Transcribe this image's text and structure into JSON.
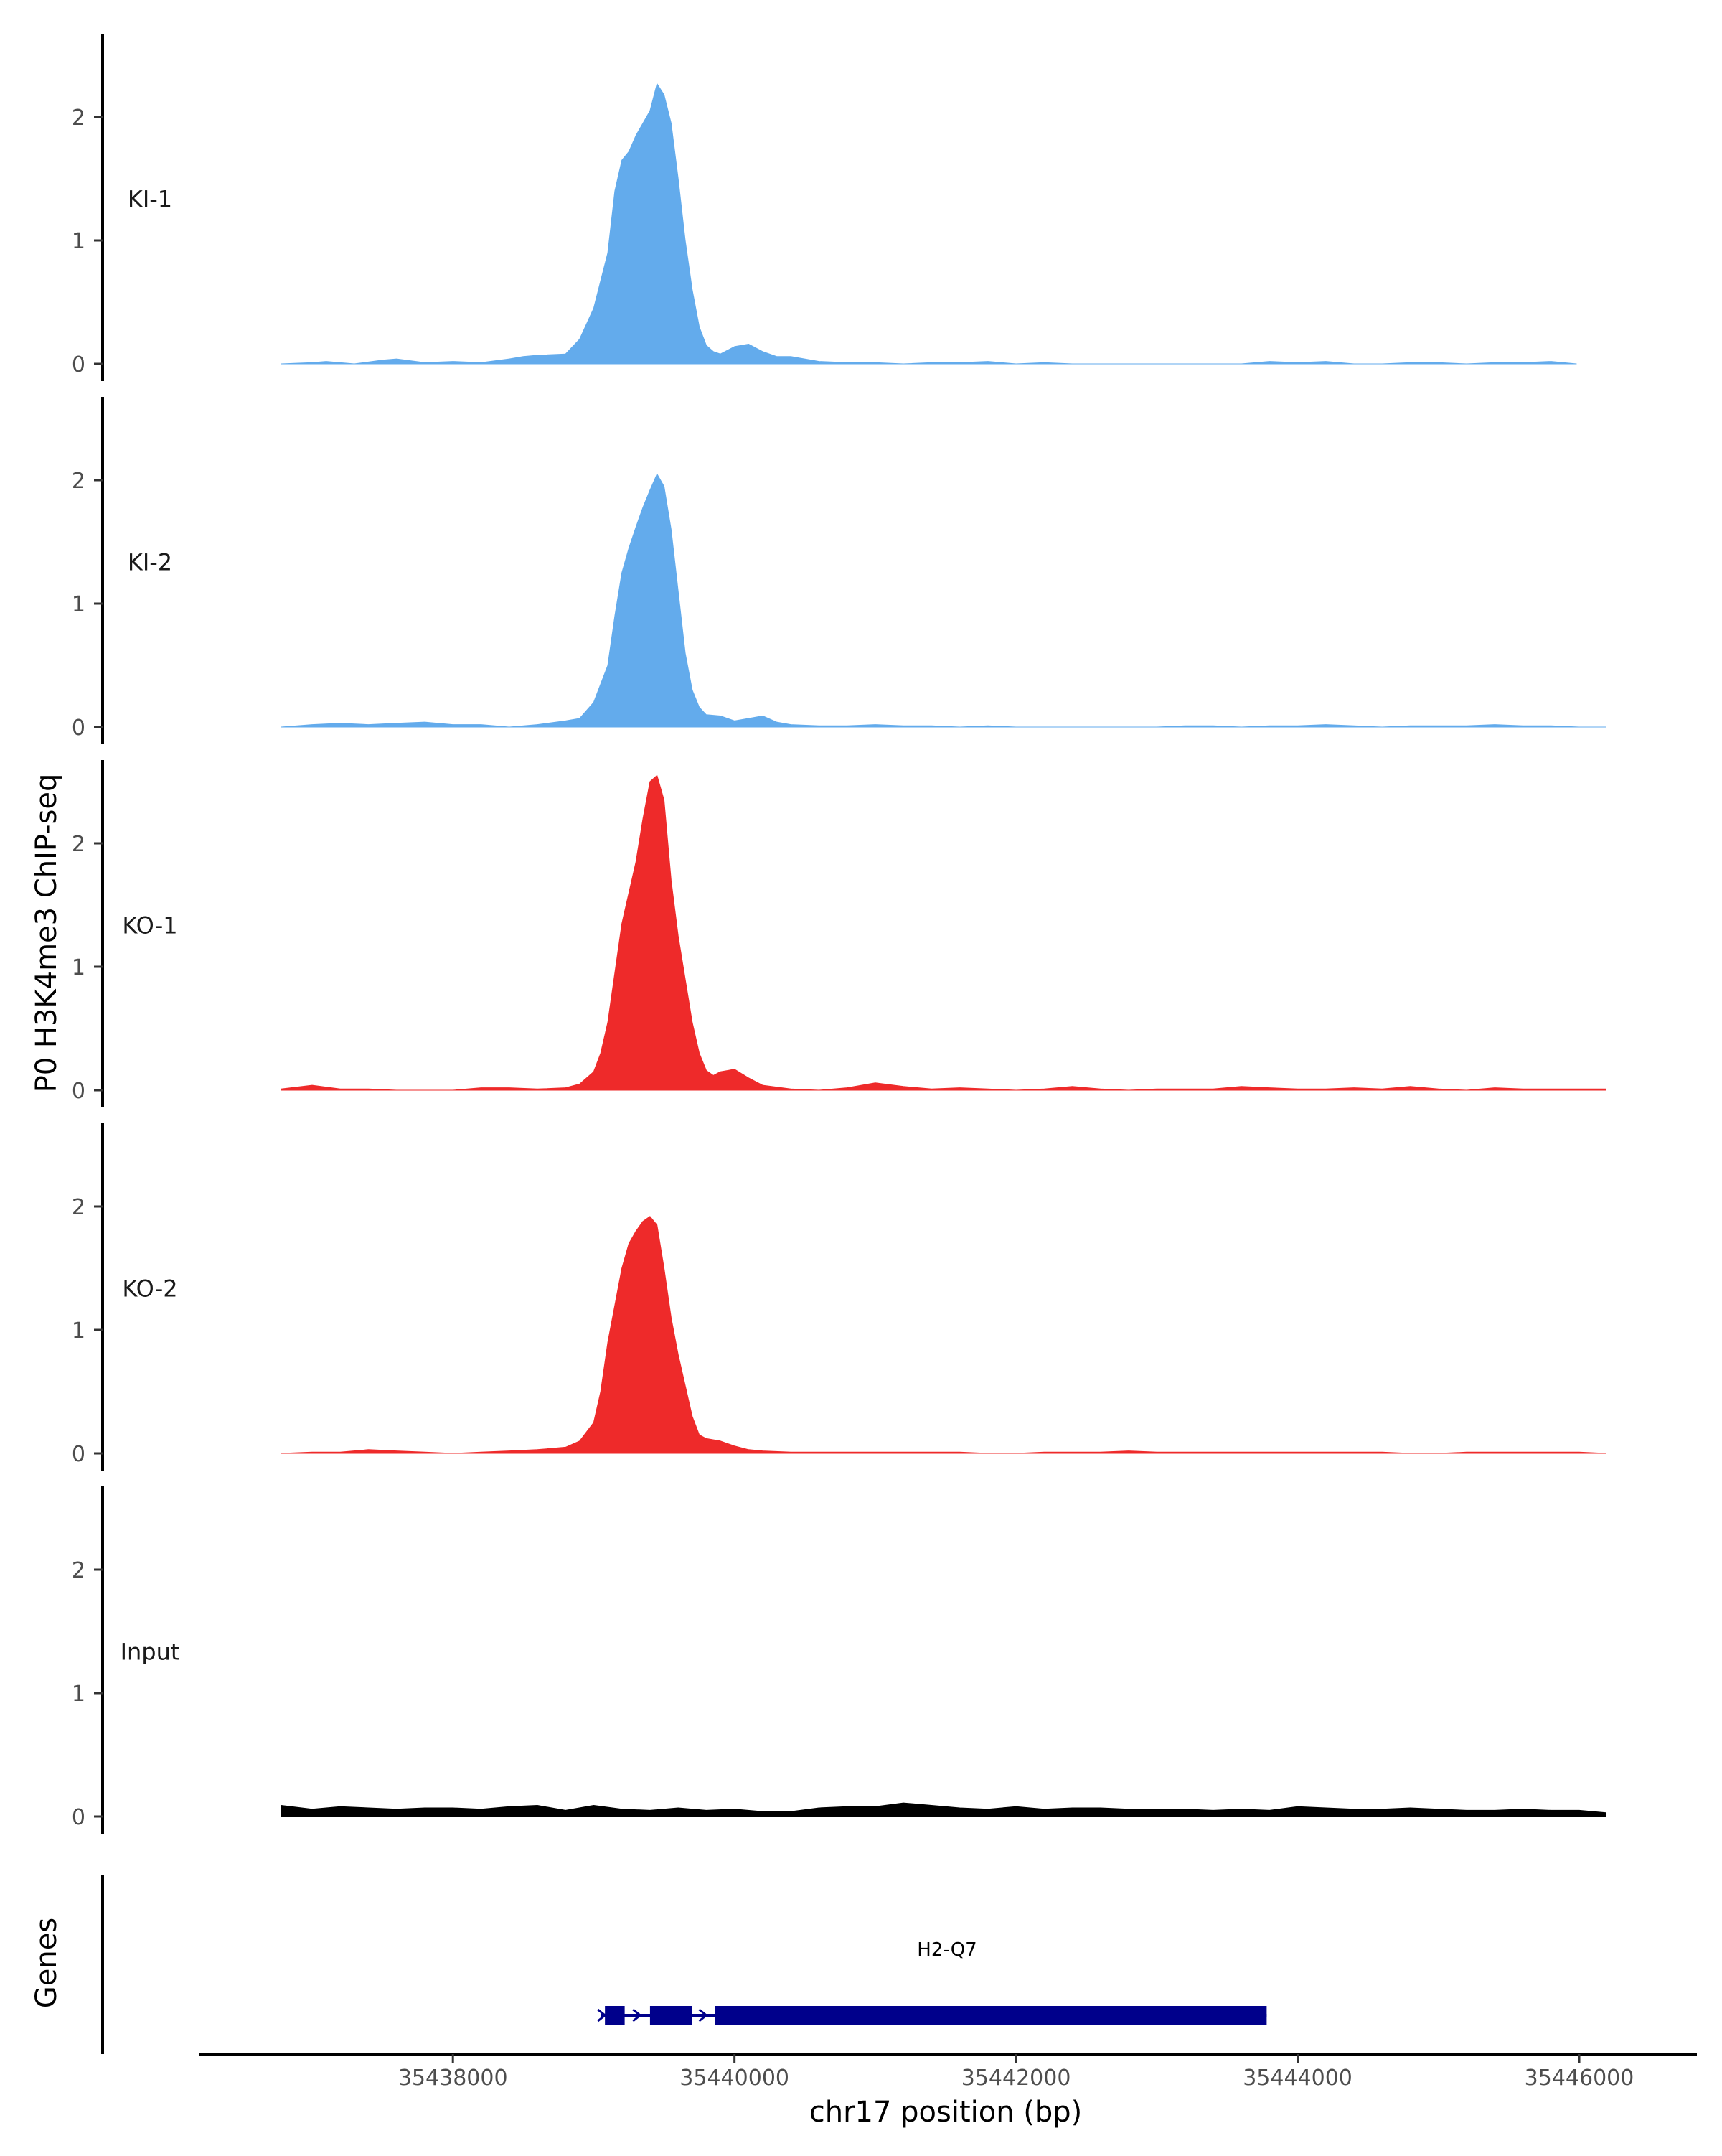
{
  "chart_data": {
    "type": "area",
    "ylabel": "P0 H3K4me3 ChIP-seq",
    "xlabel": "chr17 position (bp)",
    "xlim": [
      35436200,
      35446800
    ],
    "ylim": [
      0,
      2.65
    ],
    "yticks": [
      0,
      1,
      2
    ],
    "xticks": [
      35438000,
      35440000,
      35442000,
      35444000,
      35446000
    ],
    "xtick_labels": [
      "35438000",
      "35440000",
      "35442000",
      "35444000",
      "35446000"
    ],
    "grid": false,
    "legend": "none",
    "colors": {
      "KI": "#63ABEC",
      "KO": "#EE2A2A",
      "Input": "#000000",
      "gene": "#00008B"
    },
    "tracks": [
      {
        "name": "KI-1",
        "color": "#63ABEC",
        "x": [
          35436780,
          35437000,
          35437100,
          35437300,
          35437500,
          35437600,
          35437800,
          35438000,
          35438200,
          35438400,
          35438500,
          35438600,
          35438800,
          35438900,
          35439000,
          35439100,
          35439150,
          35439200,
          35439250,
          35439300,
          35439350,
          35439400,
          35439450,
          35439500,
          35439550,
          35439600,
          35439650,
          35439700,
          35439750,
          35439800,
          35439850,
          35439900,
          35440000,
          35440100,
          35440200,
          35440300,
          35440400,
          35440600,
          35440800,
          35441000,
          35441200,
          35441400,
          35441600,
          35441800,
          35442000,
          35442200,
          35442400,
          35442600,
          35442800,
          35443000,
          35443200,
          35443400,
          35443600,
          35443800,
          35444000,
          35444200,
          35444400,
          35444600,
          35444800,
          35445000,
          35445200,
          35445400,
          35445600,
          35445800,
          35445980
        ],
        "y": [
          0.0,
          0.01,
          0.02,
          0.0,
          0.03,
          0.04,
          0.01,
          0.02,
          0.01,
          0.04,
          0.06,
          0.07,
          0.08,
          0.2,
          0.45,
          0.9,
          1.4,
          1.65,
          1.72,
          1.85,
          1.95,
          2.05,
          2.27,
          2.18,
          1.95,
          1.5,
          1.0,
          0.6,
          0.3,
          0.15,
          0.1,
          0.08,
          0.14,
          0.16,
          0.1,
          0.06,
          0.06,
          0.02,
          0.01,
          0.01,
          0.0,
          0.01,
          0.01,
          0.02,
          0.0,
          0.01,
          0.0,
          0.0,
          0.0,
          0.0,
          0.0,
          0.0,
          0.0,
          0.02,
          0.01,
          0.02,
          0.0,
          0.0,
          0.01,
          0.01,
          0.0,
          0.01,
          0.01,
          0.02,
          0.0
        ]
      },
      {
        "name": "KI-2",
        "color": "#63ABEC",
        "x": [
          35436780,
          35437000,
          35437200,
          35437400,
          35437600,
          35437800,
          35438000,
          35438200,
          35438400,
          35438600,
          35438800,
          35438900,
          35439000,
          35439100,
          35439150,
          35439200,
          35439250,
          35439300,
          35439350,
          35439400,
          35439450,
          35439500,
          35439550,
          35439600,
          35439650,
          35439700,
          35439750,
          35439800,
          35439900,
          35440000,
          35440100,
          35440200,
          35440300,
          35440400,
          35440600,
          35440800,
          35441000,
          35441200,
          35441400,
          35441600,
          35441800,
          35442000,
          35442200,
          35442400,
          35442600,
          35442800,
          35443000,
          35443200,
          35443400,
          35443600,
          35443800,
          35444000,
          35444200,
          35444400,
          35444600,
          35444800,
          35445000,
          35445200,
          35445400,
          35445600,
          35445800,
          35446000,
          35446190
        ],
        "y": [
          0.0,
          0.02,
          0.03,
          0.02,
          0.03,
          0.04,
          0.02,
          0.02,
          0.0,
          0.02,
          0.05,
          0.07,
          0.2,
          0.5,
          0.9,
          1.25,
          1.45,
          1.62,
          1.78,
          1.92,
          2.05,
          1.95,
          1.6,
          1.1,
          0.6,
          0.3,
          0.16,
          0.1,
          0.09,
          0.05,
          0.07,
          0.09,
          0.04,
          0.02,
          0.01,
          0.01,
          0.02,
          0.01,
          0.01,
          0.0,
          0.01,
          0.0,
          0.0,
          0.0,
          0.0,
          0.0,
          0.0,
          0.01,
          0.01,
          0.0,
          0.01,
          0.01,
          0.02,
          0.01,
          0.0,
          0.01,
          0.01,
          0.01,
          0.02,
          0.01,
          0.01,
          0.0,
          0.0
        ]
      },
      {
        "name": "KO-1",
        "color": "#EE2A2A",
        "x": [
          35436780,
          35437000,
          35437200,
          35437400,
          35437600,
          35437800,
          35438000,
          35438200,
          35438400,
          35438600,
          35438800,
          35438900,
          35439000,
          35439050,
          35439100,
          35439150,
          35439200,
          35439250,
          35439300,
          35439350,
          35439400,
          35439450,
          35439500,
          35439550,
          35439600,
          35439650,
          35439700,
          35439750,
          35439800,
          35439850,
          35439900,
          35440000,
          35440100,
          35440200,
          35440400,
          35440600,
          35440800,
          35441000,
          35441200,
          35441400,
          35441600,
          35441800,
          35442000,
          35442200,
          35442400,
          35442600,
          35442800,
          35443000,
          35443200,
          35443400,
          35443600,
          35443800,
          35444000,
          35444200,
          35444400,
          35444600,
          35444800,
          35445000,
          35445200,
          35445400,
          35445600,
          35445800,
          35446000,
          35446190
        ],
        "y": [
          0.01,
          0.04,
          0.01,
          0.01,
          0.0,
          0.0,
          0.0,
          0.02,
          0.02,
          0.01,
          0.02,
          0.05,
          0.15,
          0.3,
          0.55,
          0.95,
          1.35,
          1.6,
          1.85,
          2.2,
          2.5,
          2.55,
          2.35,
          1.7,
          1.25,
          0.9,
          0.55,
          0.3,
          0.16,
          0.12,
          0.15,
          0.17,
          0.1,
          0.04,
          0.01,
          0.0,
          0.02,
          0.06,
          0.03,
          0.01,
          0.02,
          0.01,
          0.0,
          0.01,
          0.03,
          0.01,
          0.0,
          0.01,
          0.01,
          0.01,
          0.03,
          0.02,
          0.01,
          0.01,
          0.02,
          0.01,
          0.03,
          0.01,
          0.0,
          0.02,
          0.01,
          0.01,
          0.01,
          0.01
        ]
      },
      {
        "name": "KO-2",
        "color": "#EE2A2A",
        "x": [
          35436780,
          35437000,
          35437200,
          35437400,
          35437600,
          35437800,
          35438000,
          35438200,
          35438400,
          35438600,
          35438800,
          35438900,
          35439000,
          35439050,
          35439100,
          35439150,
          35439200,
          35439250,
          35439300,
          35439350,
          35439400,
          35439450,
          35439500,
          35439550,
          35439600,
          35439650,
          35439700,
          35439750,
          35439800,
          35439900,
          35440000,
          35440100,
          35440200,
          35440400,
          35440600,
          35440800,
          35441000,
          35441200,
          35441400,
          35441600,
          35441800,
          35442000,
          35442200,
          35442400,
          35442600,
          35442800,
          35443000,
          35443200,
          35443400,
          35443600,
          35443800,
          35444000,
          35444200,
          35444400,
          35444600,
          35444800,
          35445000,
          35445200,
          35445400,
          35445600,
          35445800,
          35446000,
          35446190
        ],
        "y": [
          0.0,
          0.01,
          0.01,
          0.03,
          0.02,
          0.01,
          0.0,
          0.01,
          0.02,
          0.03,
          0.05,
          0.1,
          0.25,
          0.5,
          0.9,
          1.2,
          1.5,
          1.7,
          1.8,
          1.88,
          1.92,
          1.85,
          1.5,
          1.1,
          0.8,
          0.55,
          0.3,
          0.15,
          0.12,
          0.1,
          0.06,
          0.03,
          0.02,
          0.01,
          0.01,
          0.01,
          0.01,
          0.01,
          0.01,
          0.01,
          0.0,
          0.0,
          0.01,
          0.01,
          0.01,
          0.02,
          0.01,
          0.01,
          0.01,
          0.01,
          0.01,
          0.01,
          0.01,
          0.01,
          0.01,
          0.0,
          0.0,
          0.01,
          0.01,
          0.01,
          0.01,
          0.01,
          0.0
        ]
      },
      {
        "name": "Input",
        "color": "#000000",
        "x": [
          35436780,
          35437000,
          35437200,
          35437400,
          35437600,
          35437800,
          35438000,
          35438200,
          35438400,
          35438600,
          35438800,
          35439000,
          35439200,
          35439400,
          35439600,
          35439800,
          35440000,
          35440200,
          35440400,
          35440600,
          35440800,
          35441000,
          35441200,
          35441400,
          35441600,
          35441800,
          35442000,
          35442200,
          35442400,
          35442600,
          35442800,
          35443000,
          35443200,
          35443400,
          35443600,
          35443800,
          35444000,
          35444200,
          35444400,
          35444600,
          35444800,
          35445000,
          35445200,
          35445400,
          35445600,
          35445800,
          35446000,
          35446190
        ],
        "y": [
          0.09,
          0.06,
          0.08,
          0.07,
          0.06,
          0.07,
          0.07,
          0.06,
          0.08,
          0.09,
          0.05,
          0.09,
          0.06,
          0.05,
          0.07,
          0.05,
          0.06,
          0.04,
          0.04,
          0.07,
          0.08,
          0.08,
          0.11,
          0.09,
          0.07,
          0.06,
          0.08,
          0.06,
          0.07,
          0.07,
          0.06,
          0.06,
          0.06,
          0.05,
          0.06,
          0.05,
          0.08,
          0.07,
          0.06,
          0.06,
          0.07,
          0.06,
          0.05,
          0.05,
          0.06,
          0.05,
          0.05,
          0.03
        ]
      }
    ],
    "genes_track": {
      "label": "Genes",
      "genes": [
        {
          "name": "H2-Q7",
          "start": 35439050,
          "end": 35443780,
          "exons": [
            [
              35439080,
              35439220
            ],
            [
              35439400,
              35439700
            ],
            [
              35439860,
              35443780
            ]
          ]
        }
      ]
    }
  }
}
